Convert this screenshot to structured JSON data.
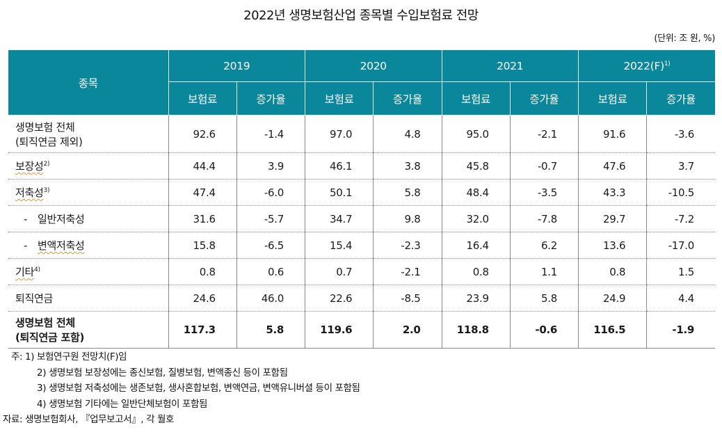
{
  "title": "2022년 생명보험산업 종목별 수입보험료 전망",
  "unit": "(단위: 조 원, %)",
  "header_color": "#0b879b",
  "table": {
    "item_header": "종목",
    "years": [
      {
        "label": "2019",
        "sup": ""
      },
      {
        "label": "2020",
        "sup": ""
      },
      {
        "label": "2021",
        "sup": ""
      },
      {
        "label": "2022(F)",
        "sup": "1)"
      }
    ],
    "sub_headers": [
      "보험료",
      "증가율",
      "보험료",
      "증가율",
      "보험료",
      "증가율",
      "보험료",
      "증가율"
    ],
    "rows": [
      {
        "label": "생명보험 전체",
        "label2": "(퇴직연금 제외)",
        "sup": "",
        "values": [
          "92.6",
          "-1.4",
          "97.0",
          "4.8",
          "95.0",
          "-2.1",
          "91.6",
          "-3.6"
        ]
      },
      {
        "label": "보장성",
        "sup": "2)",
        "values": [
          "44.4",
          "3.9",
          "46.1",
          "3.8",
          "45.8",
          "-0.7",
          "47.6",
          "3.7"
        ]
      },
      {
        "label": "저축성",
        "sup": "3)",
        "values": [
          "47.4",
          "-6.0",
          "50.1",
          "5.8",
          "48.4",
          "-3.5",
          "43.3",
          "-10.5"
        ]
      },
      {
        "label": "일반저축성",
        "prefix": "-",
        "sup": "",
        "values": [
          "31.6",
          "-5.7",
          "34.7",
          "9.8",
          "32.0",
          "-7.8",
          "29.7",
          "-7.2"
        ]
      },
      {
        "label": "변액저축성",
        "prefix": "-",
        "sup": "",
        "values": [
          "15.8",
          "-6.5",
          "15.4",
          "-2.3",
          "16.4",
          "6.2",
          "13.6",
          "-17.0"
        ]
      },
      {
        "label": "기타",
        "sup": "4)",
        "values": [
          "0.8",
          "0.6",
          "0.7",
          "-2.1",
          "0.8",
          "1.1",
          "0.8",
          "1.5"
        ]
      },
      {
        "label": "퇴직연금",
        "sup": "",
        "values": [
          "24.6",
          "46.0",
          "22.6",
          "-8.5",
          "23.9",
          "5.8",
          "24.9",
          "4.4"
        ]
      },
      {
        "label": "생명보험 전체",
        "label2": "(퇴직연금 포함)",
        "sup": "",
        "values": [
          "117.3",
          "5.8",
          "119.6",
          "2.0",
          "118.8",
          "-0.6",
          "116.5",
          "-1.9"
        ]
      }
    ]
  },
  "notes": {
    "n1": "주: 1) 보험연구원 전망치(F)임",
    "n2": "2) 생명보험 보장성에는 종신보험, 질병보험, 변액종신 등이 포함됨",
    "n3": "3) 생명보험 저축성에는 생존보험, 생사혼합보험, 변액연금, 변액유니버셜 등이 포함됨",
    "n4": "4) 생명보험 기타에는 일반단체보험이 포함됨",
    "source": "자료: 생명보험회사, 『업무보고서』, 각 월호"
  }
}
